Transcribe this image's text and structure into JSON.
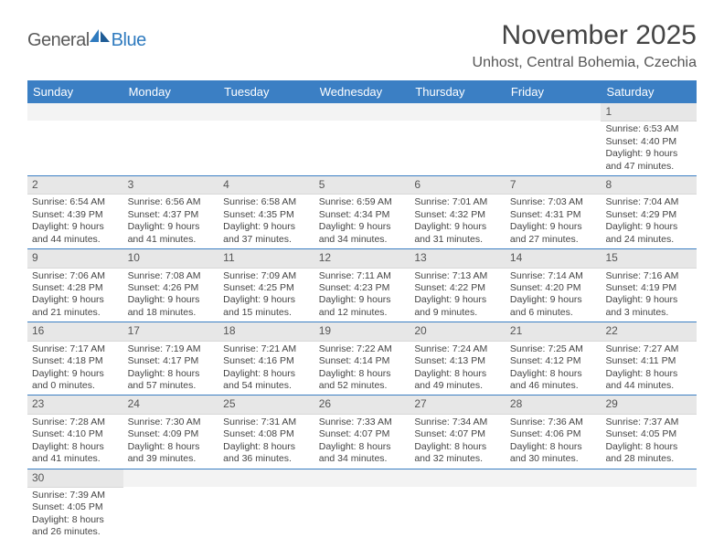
{
  "logo": {
    "part1": "General",
    "part2": "Blue"
  },
  "title": "November 2025",
  "subtitle": "Unhost, Central Bohemia, Czechia",
  "colors": {
    "header_bg": "#3b7fc4",
    "header_text": "#ffffff",
    "row_border": "#3b7fc4",
    "daynum_bg": "#e7e7e7",
    "body_text": "#444444"
  },
  "day_names": [
    "Sunday",
    "Monday",
    "Tuesday",
    "Wednesday",
    "Thursday",
    "Friday",
    "Saturday"
  ],
  "weeks": [
    [
      {
        "day": "",
        "lines": []
      },
      {
        "day": "",
        "lines": []
      },
      {
        "day": "",
        "lines": []
      },
      {
        "day": "",
        "lines": []
      },
      {
        "day": "",
        "lines": []
      },
      {
        "day": "",
        "lines": []
      },
      {
        "day": "1",
        "lines": [
          "Sunrise: 6:53 AM",
          "Sunset: 4:40 PM",
          "Daylight: 9 hours and 47 minutes."
        ]
      }
    ],
    [
      {
        "day": "2",
        "lines": [
          "Sunrise: 6:54 AM",
          "Sunset: 4:39 PM",
          "Daylight: 9 hours and 44 minutes."
        ]
      },
      {
        "day": "3",
        "lines": [
          "Sunrise: 6:56 AM",
          "Sunset: 4:37 PM",
          "Daylight: 9 hours and 41 minutes."
        ]
      },
      {
        "day": "4",
        "lines": [
          "Sunrise: 6:58 AM",
          "Sunset: 4:35 PM",
          "Daylight: 9 hours and 37 minutes."
        ]
      },
      {
        "day": "5",
        "lines": [
          "Sunrise: 6:59 AM",
          "Sunset: 4:34 PM",
          "Daylight: 9 hours and 34 minutes."
        ]
      },
      {
        "day": "6",
        "lines": [
          "Sunrise: 7:01 AM",
          "Sunset: 4:32 PM",
          "Daylight: 9 hours and 31 minutes."
        ]
      },
      {
        "day": "7",
        "lines": [
          "Sunrise: 7:03 AM",
          "Sunset: 4:31 PM",
          "Daylight: 9 hours and 27 minutes."
        ]
      },
      {
        "day": "8",
        "lines": [
          "Sunrise: 7:04 AM",
          "Sunset: 4:29 PM",
          "Daylight: 9 hours and 24 minutes."
        ]
      }
    ],
    [
      {
        "day": "9",
        "lines": [
          "Sunrise: 7:06 AM",
          "Sunset: 4:28 PM",
          "Daylight: 9 hours and 21 minutes."
        ]
      },
      {
        "day": "10",
        "lines": [
          "Sunrise: 7:08 AM",
          "Sunset: 4:26 PM",
          "Daylight: 9 hours and 18 minutes."
        ]
      },
      {
        "day": "11",
        "lines": [
          "Sunrise: 7:09 AM",
          "Sunset: 4:25 PM",
          "Daylight: 9 hours and 15 minutes."
        ]
      },
      {
        "day": "12",
        "lines": [
          "Sunrise: 7:11 AM",
          "Sunset: 4:23 PM",
          "Daylight: 9 hours and 12 minutes."
        ]
      },
      {
        "day": "13",
        "lines": [
          "Sunrise: 7:13 AM",
          "Sunset: 4:22 PM",
          "Daylight: 9 hours and 9 minutes."
        ]
      },
      {
        "day": "14",
        "lines": [
          "Sunrise: 7:14 AM",
          "Sunset: 4:20 PM",
          "Daylight: 9 hours and 6 minutes."
        ]
      },
      {
        "day": "15",
        "lines": [
          "Sunrise: 7:16 AM",
          "Sunset: 4:19 PM",
          "Daylight: 9 hours and 3 minutes."
        ]
      }
    ],
    [
      {
        "day": "16",
        "lines": [
          "Sunrise: 7:17 AM",
          "Sunset: 4:18 PM",
          "Daylight: 9 hours and 0 minutes."
        ]
      },
      {
        "day": "17",
        "lines": [
          "Sunrise: 7:19 AM",
          "Sunset: 4:17 PM",
          "Daylight: 8 hours and 57 minutes."
        ]
      },
      {
        "day": "18",
        "lines": [
          "Sunrise: 7:21 AM",
          "Sunset: 4:16 PM",
          "Daylight: 8 hours and 54 minutes."
        ]
      },
      {
        "day": "19",
        "lines": [
          "Sunrise: 7:22 AM",
          "Sunset: 4:14 PM",
          "Daylight: 8 hours and 52 minutes."
        ]
      },
      {
        "day": "20",
        "lines": [
          "Sunrise: 7:24 AM",
          "Sunset: 4:13 PM",
          "Daylight: 8 hours and 49 minutes."
        ]
      },
      {
        "day": "21",
        "lines": [
          "Sunrise: 7:25 AM",
          "Sunset: 4:12 PM",
          "Daylight: 8 hours and 46 minutes."
        ]
      },
      {
        "day": "22",
        "lines": [
          "Sunrise: 7:27 AM",
          "Sunset: 4:11 PM",
          "Daylight: 8 hours and 44 minutes."
        ]
      }
    ],
    [
      {
        "day": "23",
        "lines": [
          "Sunrise: 7:28 AM",
          "Sunset: 4:10 PM",
          "Daylight: 8 hours and 41 minutes."
        ]
      },
      {
        "day": "24",
        "lines": [
          "Sunrise: 7:30 AM",
          "Sunset: 4:09 PM",
          "Daylight: 8 hours and 39 minutes."
        ]
      },
      {
        "day": "25",
        "lines": [
          "Sunrise: 7:31 AM",
          "Sunset: 4:08 PM",
          "Daylight: 8 hours and 36 minutes."
        ]
      },
      {
        "day": "26",
        "lines": [
          "Sunrise: 7:33 AM",
          "Sunset: 4:07 PM",
          "Daylight: 8 hours and 34 minutes."
        ]
      },
      {
        "day": "27",
        "lines": [
          "Sunrise: 7:34 AM",
          "Sunset: 4:07 PM",
          "Daylight: 8 hours and 32 minutes."
        ]
      },
      {
        "day": "28",
        "lines": [
          "Sunrise: 7:36 AM",
          "Sunset: 4:06 PM",
          "Daylight: 8 hours and 30 minutes."
        ]
      },
      {
        "day": "29",
        "lines": [
          "Sunrise: 7:37 AM",
          "Sunset: 4:05 PM",
          "Daylight: 8 hours and 28 minutes."
        ]
      }
    ],
    [
      {
        "day": "30",
        "lines": [
          "Sunrise: 7:39 AM",
          "Sunset: 4:05 PM",
          "Daylight: 8 hours and 26 minutes."
        ]
      },
      {
        "day": "",
        "lines": []
      },
      {
        "day": "",
        "lines": []
      },
      {
        "day": "",
        "lines": []
      },
      {
        "day": "",
        "lines": []
      },
      {
        "day": "",
        "lines": []
      },
      {
        "day": "",
        "lines": []
      }
    ]
  ]
}
